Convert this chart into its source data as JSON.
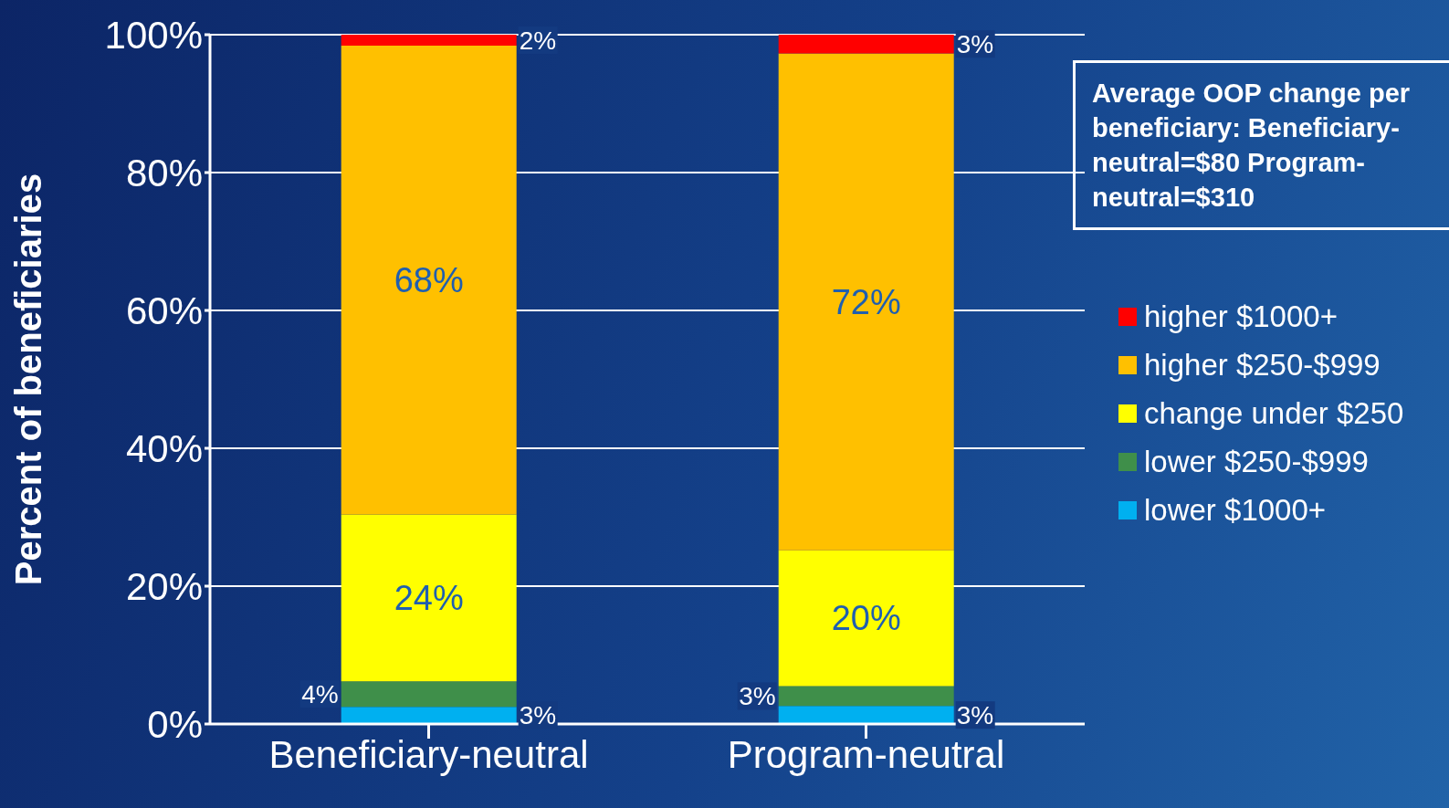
{
  "chart_data": {
    "type": "bar",
    "stacked": true,
    "ylabel": "Percent of beneficiaries",
    "categories": [
      "Beneficiary-neutral",
      "Program-neutral"
    ],
    "series": [
      {
        "name": "lower $1000+",
        "color": "#00b0f0",
        "values": [
          2.5,
          2.6
        ],
        "value_labels": [
          "3%",
          "3%"
        ]
      },
      {
        "name": "lower $250-$999",
        "color": "#3f8f4a",
        "values": [
          3.7,
          2.9
        ],
        "value_labels": [
          "4%",
          "3%"
        ]
      },
      {
        "name": "change under $250",
        "color": "#ffff00",
        "values": [
          24.2,
          19.7
        ],
        "value_labels": [
          "24%",
          "20%"
        ]
      },
      {
        "name": "higher $250-$999",
        "color": "#ffc000",
        "values": [
          68.0,
          72.1
        ],
        "value_labels": [
          "68%",
          "72%"
        ]
      },
      {
        "name": "higher $1000+",
        "color": "#ff0000",
        "values": [
          1.6,
          2.7
        ],
        "value_labels": [
          "2%",
          "3%"
        ]
      }
    ],
    "ylim": [
      0,
      100
    ],
    "yticks": [
      {
        "value": 0,
        "label": "0%"
      },
      {
        "value": 20,
        "label": "20%"
      },
      {
        "value": 40,
        "label": "40%"
      },
      {
        "value": 60,
        "label": "60%"
      },
      {
        "value": 80,
        "label": "80%"
      },
      {
        "value": 100,
        "label": "100%"
      }
    ],
    "grid": "y",
    "legend": "right",
    "annotations": [
      "Average OOP change per beneficiary: Beneficiary-neutral=$80 Program-neutral=$310"
    ]
  }
}
